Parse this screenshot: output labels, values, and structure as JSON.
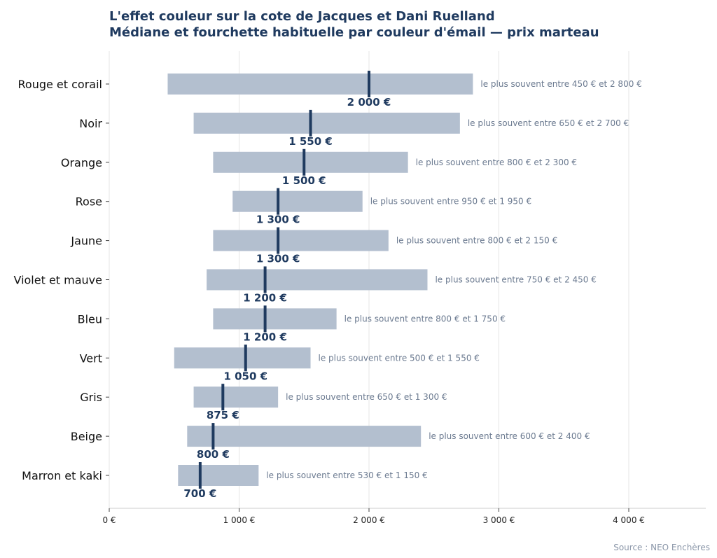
{
  "chart_data": {
    "type": "bar",
    "title": "L'effet couleur sur la cote de Jacques et Dani Ruelland",
    "subtitle": "Médiane et fourchette habituelle par couleur d'émail — prix marteau",
    "xlabel": "",
    "ylabel": "",
    "xlim": [
      0,
      4600
    ],
    "x_ticks": [
      0,
      1000,
      2000,
      3000,
      4000
    ],
    "x_tick_labels": [
      "0 €",
      "1 000 €",
      "2 000 €",
      "3 000 €",
      "4 000 €"
    ],
    "grid": true,
    "categories": [
      "Rouge et corail",
      "Noir",
      "Orange",
      "Rose",
      "Jaune",
      "Violet et mauve",
      "Bleu",
      "Vert",
      "Gris",
      "Beige",
      "Marron et kaki"
    ],
    "low": [
      450,
      650,
      800,
      950,
      800,
      750,
      800,
      500,
      650,
      600,
      530
    ],
    "high": [
      2800,
      2700,
      2300,
      1950,
      2150,
      2450,
      1750,
      1550,
      1300,
      2400,
      1150
    ],
    "median": [
      2000,
      1550,
      1500,
      1300,
      1300,
      1200,
      1200,
      1050,
      875,
      800,
      700
    ],
    "median_labels": [
      "2 000 €",
      "1 550 €",
      "1 500 €",
      "1 300 €",
      "1 300 €",
      "1 200 €",
      "1 200 €",
      "1 050 €",
      "875 €",
      "800 €",
      "700 €"
    ],
    "range_labels": [
      "le plus souvent entre 450 € et 2 800 €",
      "le plus souvent entre 650 € et 2 700 €",
      "le plus souvent entre 800 € et 2 300 €",
      "le plus souvent entre 950 € et 1 950 €",
      "le plus souvent entre 800 € et 2 150 €",
      "le plus souvent entre 750 € et 2 450 €",
      "le plus souvent entre 800 € et 1 750 €",
      "le plus souvent entre 500 € et 1 550 €",
      "le plus souvent entre 650 € et 1 300 €",
      "le plus souvent entre 600 € et 2 400 €",
      "le plus souvent entre 530 € et 1 150 €"
    ],
    "colors": {
      "range_bar": "#b3bfcf",
      "median": "#1f3a5f",
      "range_label": "#6b7a90",
      "title": "#1f3a5f"
    },
    "source": "Source : NEO Enchères"
  }
}
